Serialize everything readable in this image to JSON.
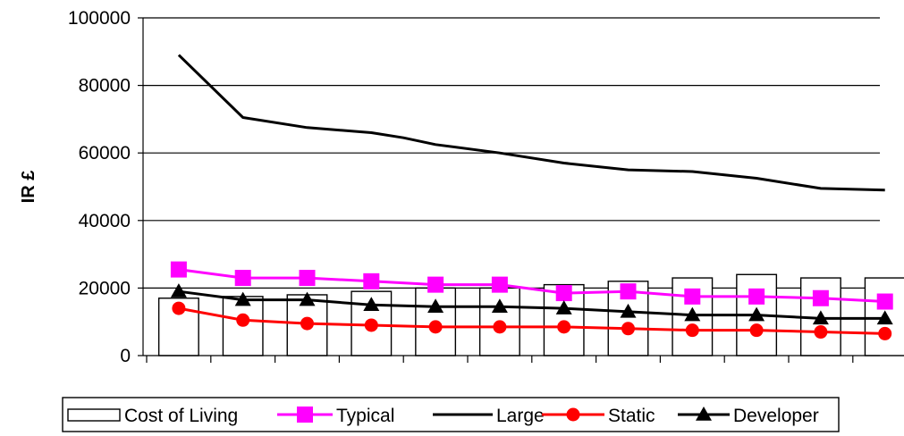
{
  "chart_data": {
    "type": "line",
    "title": "",
    "xlabel": "",
    "ylabel": "IR £",
    "ylim": [
      0,
      100000
    ],
    "yticks": [
      "100000",
      "80000",
      "60000",
      "40000",
      "20000",
      "0"
    ],
    "grid": true,
    "legend_position": "bottom",
    "x": [
      1,
      2,
      3,
      4,
      5,
      6,
      7,
      8,
      9,
      10,
      11,
      12
    ],
    "series": [
      {
        "name": "Cost of Living",
        "render": "bar",
        "color": "#ffffff",
        "values": [
          17000,
          17500,
          18000,
          19000,
          20000,
          20000,
          21000,
          22000,
          23000,
          24000,
          23000,
          23000
        ]
      },
      {
        "name": "Typical",
        "render": "line",
        "marker": "square",
        "color": "#ff00ff",
        "values": [
          25500,
          23000,
          23000,
          22000,
          21000,
          21000,
          18500,
          19000,
          17500,
          17500,
          17000,
          16000
        ]
      },
      {
        "name": "Large",
        "render": "line",
        "marker": "none",
        "color": "#000000",
        "points": [
          [
            1,
            89000
          ],
          [
            2,
            70500
          ],
          [
            3,
            67500
          ],
          [
            4,
            66000
          ],
          [
            4.5,
            64500
          ],
          [
            5,
            62500
          ],
          [
            6,
            60000
          ],
          [
            7,
            57000
          ],
          [
            8,
            55000
          ],
          [
            9,
            54500
          ],
          [
            10,
            52500
          ],
          [
            11,
            49500
          ],
          [
            12,
            49000
          ]
        ]
      },
      {
        "name": "Static",
        "render": "line",
        "marker": "circle",
        "color": "#ff0000",
        "values": [
          14000,
          10500,
          9500,
          9000,
          8500,
          8500,
          8500,
          8000,
          7500,
          7500,
          7000,
          6500
        ]
      },
      {
        "name": "Developer",
        "render": "line",
        "marker": "triangle",
        "color": "#000000",
        "values": [
          19000,
          16500,
          16500,
          15000,
          14500,
          14500,
          14000,
          13000,
          12000,
          12000,
          11000,
          11000
        ]
      }
    ]
  }
}
